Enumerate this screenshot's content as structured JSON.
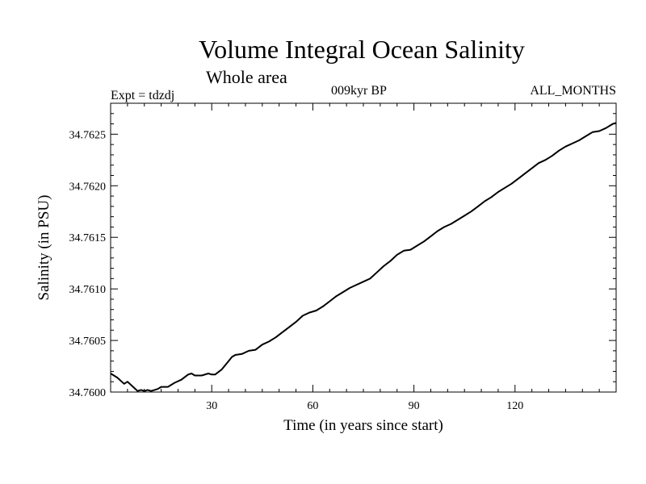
{
  "chart_data": {
    "type": "line",
    "title": "Volume Integral Ocean Salinity",
    "subtitle": "Whole area",
    "expt_label": "Expt = tdzdj",
    "period_label": "009kyr BP",
    "months_label": "ALL_MONTHS",
    "xlabel": "Time (in years since start)",
    "ylabel": "Salinity (in PSU)",
    "xlim": [
      0,
      150
    ],
    "ylim": [
      34.76,
      34.7628
    ],
    "x_ticks": [
      30,
      60,
      90,
      120
    ],
    "x_tick_labels": [
      "30",
      "60",
      "90",
      "120"
    ],
    "y_ticks": [
      34.76,
      34.7605,
      34.761,
      34.7615,
      34.762,
      34.7625
    ],
    "y_tick_labels": [
      "34.7600",
      "34.7605",
      "34.7610",
      "34.7615",
      "34.7620",
      "34.7625"
    ],
    "grid": false,
    "line_color": "#000000",
    "series": [
      {
        "x": [
          0,
          2,
          4,
          5,
          6,
          7,
          8,
          9,
          10,
          11,
          12,
          13,
          14,
          15,
          17,
          19,
          21,
          23,
          24,
          25,
          27,
          29,
          30,
          31,
          33,
          35,
          36,
          37,
          39,
          41,
          43,
          45,
          47,
          49,
          51,
          53,
          55,
          57,
          59,
          61,
          63,
          65,
          67,
          69,
          71,
          73,
          75,
          77,
          79,
          81,
          83,
          85,
          87,
          89,
          91,
          93,
          95,
          97,
          99,
          101,
          103,
          105,
          107,
          109,
          111,
          113,
          115,
          117,
          119,
          121,
          123,
          125,
          127,
          129,
          131,
          133,
          135,
          137,
          139,
          141,
          143,
          145,
          147,
          149,
          150
        ],
        "y": [
          34.76018,
          34.76014,
          34.76008,
          34.7601,
          34.76007,
          34.76004,
          34.76001,
          34.76002,
          34.76001,
          34.76002,
          34.76001,
          34.76002,
          34.76003,
          34.76005,
          34.76005,
          34.76009,
          34.76012,
          34.76017,
          34.76018,
          34.76016,
          34.76016,
          34.76018,
          34.76017,
          34.76017,
          34.76022,
          34.7603,
          34.76034,
          34.76036,
          34.76037,
          34.7604,
          34.76041,
          34.76046,
          34.76049,
          34.76053,
          34.76058,
          34.76063,
          34.76068,
          34.76074,
          34.76077,
          34.76079,
          34.76083,
          34.76088,
          34.76093,
          34.76097,
          34.76101,
          34.76104,
          34.76107,
          34.7611,
          34.76116,
          34.76122,
          34.76127,
          34.76133,
          34.76137,
          34.76138,
          34.76142,
          34.76146,
          34.76151,
          34.76156,
          34.7616,
          34.76163,
          34.76167,
          34.76171,
          34.76175,
          34.7618,
          34.76185,
          34.76189,
          34.76194,
          34.76198,
          34.76202,
          34.76207,
          34.76212,
          34.76217,
          34.76222,
          34.76225,
          34.76229,
          34.76234,
          34.76238,
          34.76241,
          34.76244,
          34.76248,
          34.76252,
          34.76253,
          34.76256,
          34.7626,
          34.76261
        ]
      }
    ]
  }
}
